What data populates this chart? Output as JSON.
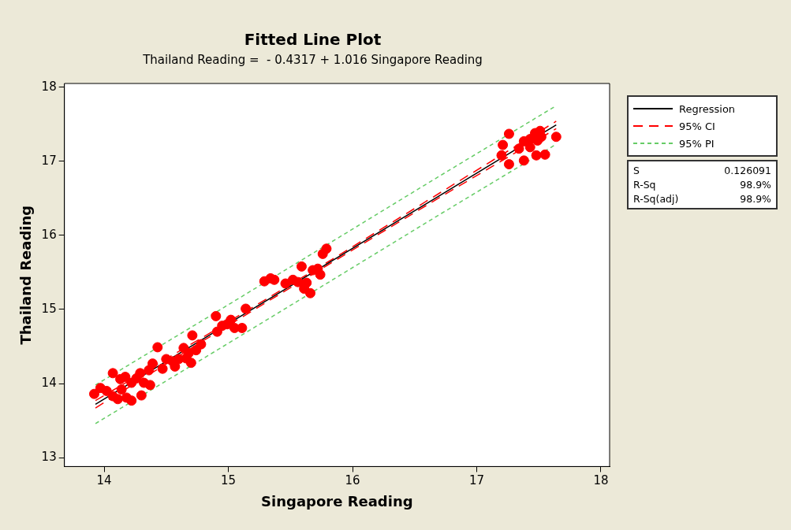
{
  "chart_data": {
    "type": "scatter",
    "title": "Fitted Line Plot",
    "subtitle": "Thailand Reading =  - 0.4317 + 1.016 Singapore Reading",
    "xlabel": "Singapore Reading",
    "ylabel": "Thailand Reading",
    "xlim": [
      13.68,
      18.07
    ],
    "xticks": [
      14,
      15,
      16,
      17,
      18
    ],
    "ylim": [
      12.88,
      18.05
    ],
    "yticks": [
      13,
      14,
      15,
      16,
      17,
      18
    ],
    "grid": false,
    "legend": "right",
    "marker": "circle",
    "annotations": [
      "S",
      "0.126091",
      "R-Sq",
      "98.9%",
      "R-Sq(adj)",
      "98.9%"
    ],
    "series": [
      {
        "type": "scatter",
        "color": "#ff0000",
        "x": [
          13.92,
          13.97,
          14.02,
          14.07,
          14.11,
          14.14,
          14.17,
          14.18,
          14.22,
          14.22,
          14.26,
          14.29,
          14.3,
          14.32,
          14.36,
          14.37,
          14.39,
          14.43,
          14.47,
          14.5,
          14.55,
          14.57,
          14.6,
          14.64,
          14.66,
          14.68,
          14.7,
          14.71,
          14.74,
          14.78,
          14.07,
          14.13,
          14.9,
          14.91,
          14.95,
          14.99,
          15.02,
          15.05,
          15.11,
          15.14,
          15.29,
          15.34,
          15.37,
          15.46,
          15.52,
          15.56,
          15.59,
          15.61,
          15.66,
          15.68,
          15.72,
          15.76,
          15.79,
          15.74,
          15.63,
          17.26,
          17.21,
          17.2,
          17.26,
          17.38,
          17.34,
          17.38,
          17.43,
          17.47,
          17.51,
          17.52,
          17.43,
          17.48,
          17.55,
          17.64,
          17.49
        ],
        "values": [
          13.86,
          13.94,
          13.9,
          13.83,
          13.79,
          13.92,
          14.09,
          13.81,
          13.77,
          14.01,
          14.07,
          14.14,
          13.84,
          14.01,
          14.18,
          13.98,
          14.27,
          14.49,
          14.2,
          14.33,
          14.3,
          14.23,
          14.33,
          14.48,
          14.34,
          14.41,
          14.28,
          14.65,
          14.45,
          14.53,
          14.14,
          14.06,
          14.91,
          14.7,
          14.78,
          14.8,
          14.86,
          14.75,
          14.75,
          15.01,
          15.38,
          15.42,
          15.4,
          15.35,
          15.4,
          15.37,
          15.58,
          15.28,
          15.22,
          15.53,
          15.55,
          15.75,
          15.82,
          15.47,
          15.36,
          17.37,
          17.22,
          17.08,
          16.96,
          17.01,
          17.17,
          17.27,
          17.3,
          17.38,
          17.41,
          17.33,
          17.19,
          17.08,
          17.09,
          17.33,
          17.28
        ]
      },
      {
        "type": "line",
        "name": "Regression",
        "color": "#000000",
        "line_style": "solid",
        "marker": "none",
        "x": [
          13.93,
          17.64
        ],
        "values": [
          13.72,
          17.49
        ]
      },
      {
        "type": "line",
        "name": "95% CI",
        "color": "#ff0000",
        "line_style": "dashed",
        "marker": "none",
        "x": [
          13.93,
          14.8,
          15.8,
          16.7,
          17.64
        ],
        "values": [
          13.77,
          14.63,
          15.64,
          16.57,
          17.54
        ]
      },
      {
        "type": "line",
        "color": "#ff0000",
        "line_style": "dashed",
        "marker": "none",
        "x": [
          13.93,
          14.8,
          15.8,
          16.7,
          17.64
        ],
        "values": [
          13.67,
          14.58,
          15.6,
          16.51,
          17.44
        ]
      },
      {
        "type": "line",
        "name": "95% PI",
        "color": "#66cc66",
        "line_style": "dotted",
        "marker": "none",
        "x": [
          13.93,
          14.8,
          15.8,
          16.7,
          17.64
        ],
        "values": [
          13.98,
          14.86,
          15.88,
          16.8,
          17.75
        ]
      },
      {
        "type": "line",
        "color": "#66cc66",
        "line_style": "dotted",
        "marker": "none",
        "x": [
          13.93,
          14.8,
          15.8,
          16.7,
          17.64
        ],
        "values": [
          13.46,
          14.34,
          15.36,
          16.28,
          17.23
        ]
      }
    ]
  }
}
